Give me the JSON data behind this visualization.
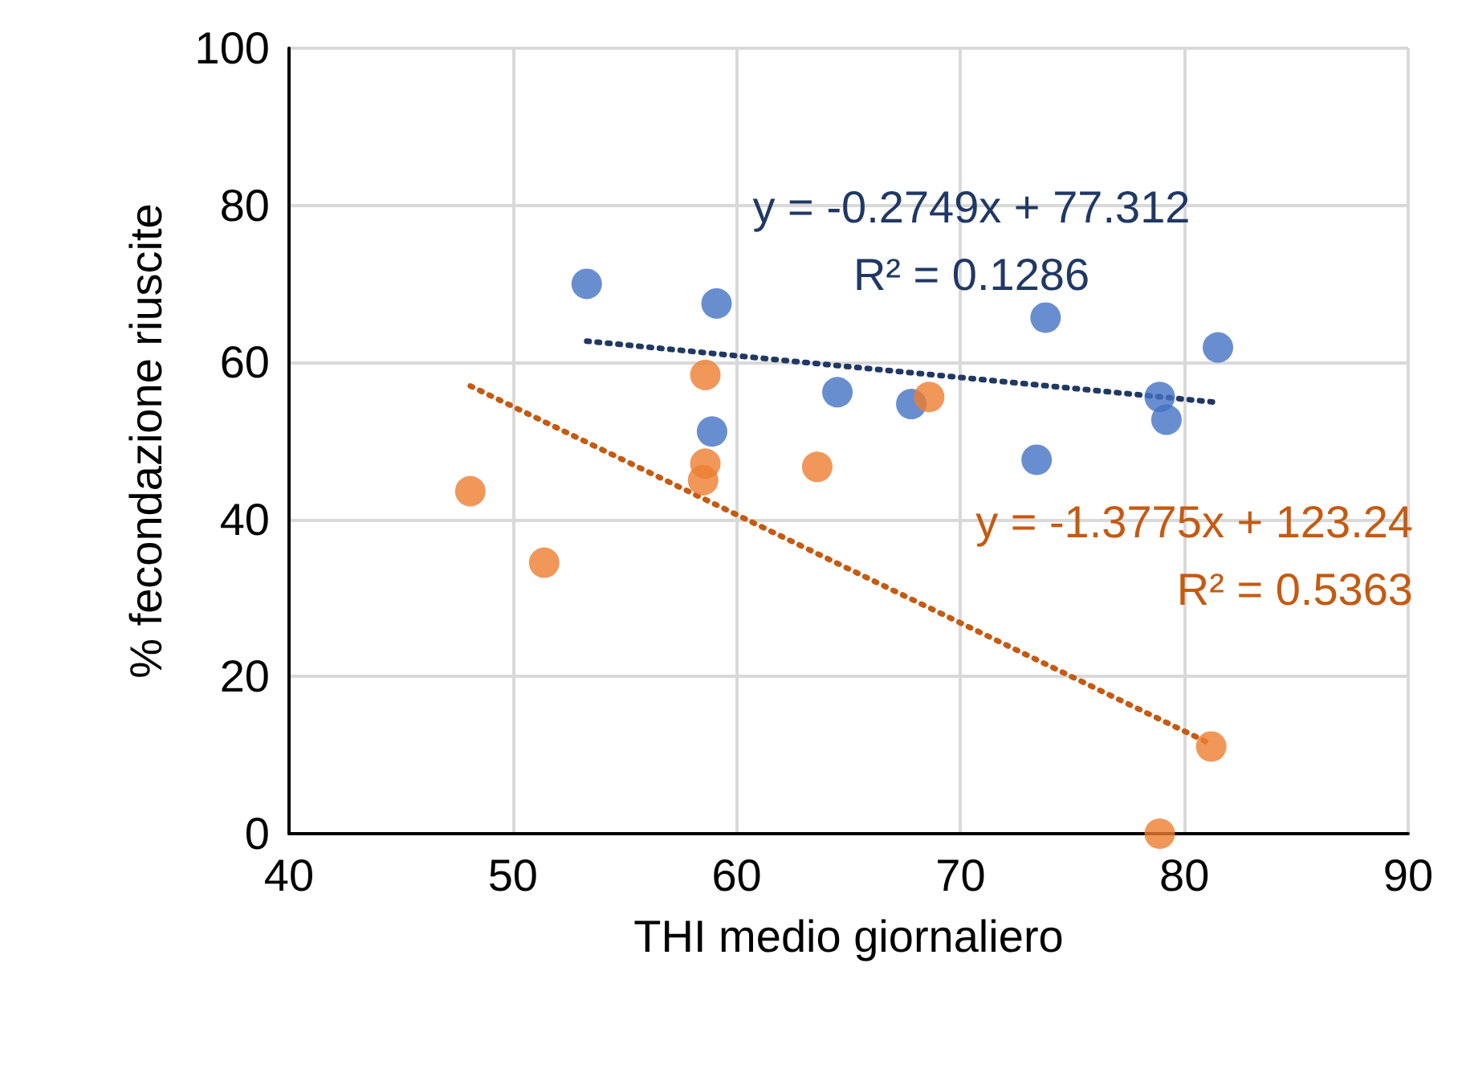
{
  "chart_data": {
    "type": "scatter",
    "xlabel": "THI medio giornaliero",
    "ylabel": "% fecondazione riuscite",
    "xlim": [
      40,
      90
    ],
    "xticks": [
      40,
      50,
      60,
      70,
      80,
      90
    ],
    "ylim": [
      0,
      100
    ],
    "yticks": [
      0,
      20,
      40,
      60,
      80,
      100
    ],
    "grid": true,
    "marker": "circle",
    "series": [
      {
        "color": "#4472c4",
        "x": [
          53.3,
          59.1,
          58.9,
          64.5,
          67.8,
          73.8,
          73.4,
          78.9,
          79.2,
          81.5
        ],
        "values": [
          70,
          67.5,
          51.2,
          56.2,
          54.7,
          65.7,
          47.6,
          55.6,
          52.7,
          61.9
        ]
      },
      {
        "color": "#ed7d31",
        "x": [
          48.1,
          51.4,
          58.6,
          58.6,
          58.5,
          63.6,
          68.6,
          78.9,
          81.2
        ],
        "values": [
          43.6,
          34.5,
          58.4,
          47.1,
          45,
          46.7,
          55.6,
          0,
          11.1
        ]
      },
      {
        "type": "line",
        "line_style": "dotted",
        "marker": "none",
        "color": "#203864",
        "x": [
          53.3,
          81.5
        ],
        "values": [
          62.7,
          54.9
        ]
      },
      {
        "type": "line",
        "line_style": "dotted",
        "marker": "none",
        "color": "#c55a11",
        "x": [
          48.1,
          81.2
        ],
        "values": [
          57.0,
          11.4
        ]
      }
    ],
    "annotations": [
      "y = -0.2749x + 77.312\nR² = 0.1286",
      "y = -1.3775x + 123.24\nR² = 0.5363"
    ]
  }
}
